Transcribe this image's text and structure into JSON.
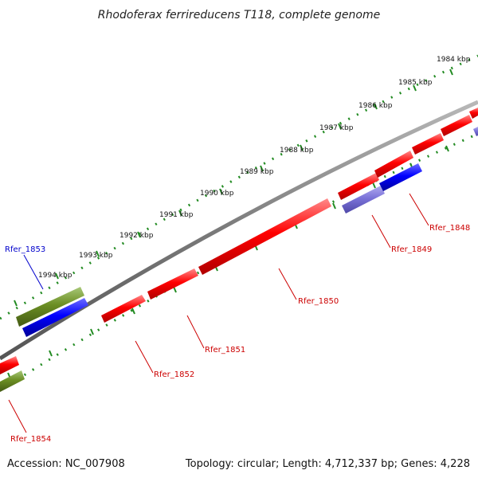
{
  "title": "Rhodoferax ferrireducens T118, complete genome",
  "footer": {
    "accession": "Accession: NC_007908",
    "summary": "Topology: circular; Length: 4,712,337 bp; Genes: 4,228"
  },
  "colors": {
    "forward_gene": "#ff0000",
    "reverse_gene": "#0000ff",
    "selected_gene": "#7a72d8",
    "rna_gene": "#6b8e23",
    "ruler": "#228b22",
    "backbone": "#808080",
    "label_red": "#cc0000",
    "label_blue": "#0000cc"
  },
  "scale_ticks": [
    {
      "label": "1984 kbp"
    },
    {
      "label": "1985 kbp"
    },
    {
      "label": "1986 kbp"
    },
    {
      "label": "1987 kbp"
    },
    {
      "label": "1988 kbp"
    },
    {
      "label": "1989 kbp"
    },
    {
      "label": "1990 kbp"
    },
    {
      "label": "1991 kbp"
    },
    {
      "label": "1992 kbp"
    },
    {
      "label": "1993 kbp"
    },
    {
      "label": "1994 kbp"
    }
  ],
  "gene_labels": [
    {
      "id": "Rfer_1848",
      "color": "red"
    },
    {
      "id": "Rfer_1849",
      "color": "red"
    },
    {
      "id": "Rfer_1850",
      "color": "red"
    },
    {
      "id": "Rfer_1851",
      "color": "red"
    },
    {
      "id": "Rfer_1852",
      "color": "red"
    },
    {
      "id": "Rfer_1853",
      "color": "blue"
    },
    {
      "id": "Rfer_1854",
      "color": "red"
    }
  ]
}
